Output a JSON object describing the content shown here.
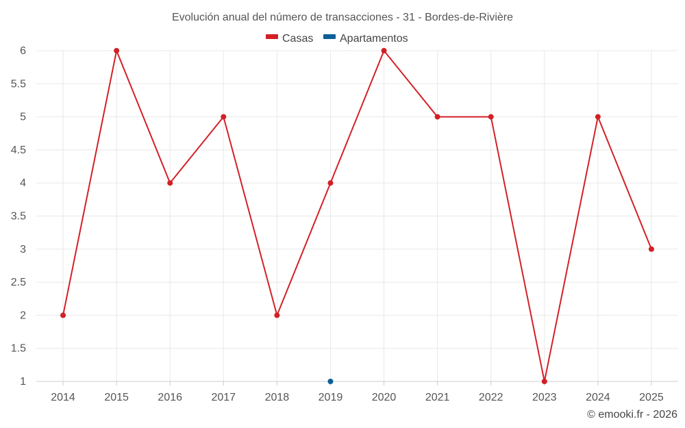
{
  "chart_data": {
    "type": "line",
    "title": "Evolución anual del número de transacciones - 31 - Bordes-de-Rivière",
    "categories": [
      "2014",
      "2015",
      "2016",
      "2017",
      "2018",
      "2019",
      "2020",
      "2021",
      "2022",
      "2023",
      "2024",
      "2025"
    ],
    "ylim": [
      1,
      6
    ],
    "yticks": [
      "1",
      "1.5",
      "2",
      "2.5",
      "3",
      "3.5",
      "4",
      "4.5",
      "5",
      "5.5",
      "6"
    ],
    "legend_position": "top-center",
    "series": [
      {
        "name": "Casas",
        "color": "#d32027",
        "values": [
          2,
          6,
          4,
          5,
          2,
          4,
          6,
          5,
          5,
          1,
          5,
          3
        ]
      },
      {
        "name": "Apartamentos",
        "color": "#0d5f96",
        "values": [
          null,
          null,
          null,
          null,
          null,
          1,
          null,
          null,
          null,
          null,
          null,
          null
        ]
      }
    ],
    "credit": "© emooki.fr - 2026"
  }
}
